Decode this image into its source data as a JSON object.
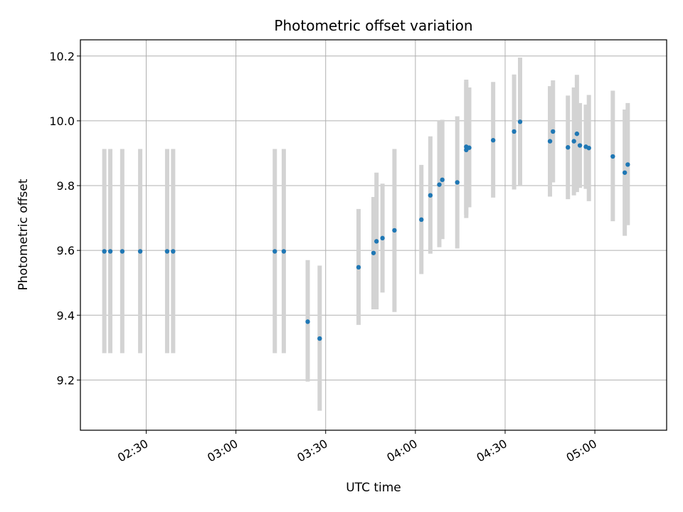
{
  "chart_data": {
    "type": "scatter",
    "title": "Photometric offset variation",
    "xlabel": "UTC time",
    "ylabel": "Photometric offset",
    "x_axis": "time",
    "xlim": [
      "02:08",
      "05:24"
    ],
    "ylim": [
      9.045,
      10.25
    ],
    "x_ticks": [
      "02:30",
      "03:00",
      "03:30",
      "04:00",
      "04:30",
      "05:00"
    ],
    "y_ticks": [
      9.2,
      9.4,
      9.6,
      9.8,
      10.0,
      10.2
    ],
    "grid": true,
    "colors": {
      "point": "#1f77b4",
      "errorbar": "#d3d3d3",
      "grid": "#b0b0b0"
    },
    "series": [
      {
        "points": [
          {
            "t": "02:16",
            "y": 9.597,
            "lo": 9.283,
            "hi": 9.913
          },
          {
            "t": "02:18",
            "y": 9.597,
            "lo": 9.283,
            "hi": 9.913
          },
          {
            "t": "02:22",
            "y": 9.597,
            "lo": 9.283,
            "hi": 9.913
          },
          {
            "t": "02:28",
            "y": 9.597,
            "lo": 9.283,
            "hi": 9.913
          },
          {
            "t": "02:37",
            "y": 9.597,
            "lo": 9.283,
            "hi": 9.913
          },
          {
            "t": "02:39",
            "y": 9.597,
            "lo": 9.283,
            "hi": 9.913
          },
          {
            "t": "03:13",
            "y": 9.597,
            "lo": 9.283,
            "hi": 9.913
          },
          {
            "t": "03:16",
            "y": 9.597,
            "lo": 9.283,
            "hi": 9.913
          },
          {
            "t": "03:24",
            "y": 9.38,
            "lo": 9.195,
            "hi": 9.57
          },
          {
            "t": "03:28",
            "y": 9.328,
            "lo": 9.105,
            "hi": 9.553
          },
          {
            "t": "03:41",
            "y": 9.548,
            "lo": 9.37,
            "hi": 9.728
          },
          {
            "t": "03:46",
            "y": 9.592,
            "lo": 9.418,
            "hi": 9.765
          },
          {
            "t": "03:47",
            "y": 9.628,
            "lo": 9.418,
            "hi": 9.84
          },
          {
            "t": "03:49",
            "y": 9.638,
            "lo": 9.47,
            "hi": 9.806
          },
          {
            "t": "03:53",
            "y": 9.662,
            "lo": 9.41,
            "hi": 9.913
          },
          {
            "t": "04:02",
            "y": 9.695,
            "lo": 9.527,
            "hi": 9.864
          },
          {
            "t": "04:05",
            "y": 9.77,
            "lo": 9.59,
            "hi": 9.952
          },
          {
            "t": "04:08",
            "y": 9.803,
            "lo": 9.61,
            "hi": 10.0
          },
          {
            "t": "04:09",
            "y": 9.818,
            "lo": 9.635,
            "hi": 10.003
          },
          {
            "t": "04:14",
            "y": 9.81,
            "lo": 9.606,
            "hi": 10.014
          },
          {
            "t": "04:17",
            "y": 9.91,
            "lo": 9.7,
            "hi": 10.12
          },
          {
            "t": "04:17",
            "y": 9.92,
            "lo": 9.71,
            "hi": 10.127
          },
          {
            "t": "04:18",
            "y": 9.917,
            "lo": 9.733,
            "hi": 10.103
          },
          {
            "t": "04:26",
            "y": 9.94,
            "lo": 9.763,
            "hi": 10.12
          },
          {
            "t": "04:33",
            "y": 9.967,
            "lo": 9.788,
            "hi": 10.143
          },
          {
            "t": "04:35",
            "y": 9.997,
            "lo": 9.8,
            "hi": 10.195
          },
          {
            "t": "04:45",
            "y": 9.937,
            "lo": 9.766,
            "hi": 10.107
          },
          {
            "t": "04:46",
            "y": 9.967,
            "lo": 9.81,
            "hi": 10.125
          },
          {
            "t": "04:51",
            "y": 9.918,
            "lo": 9.758,
            "hi": 10.078
          },
          {
            "t": "04:53",
            "y": 9.937,
            "lo": 9.77,
            "hi": 10.103
          },
          {
            "t": "04:54",
            "y": 9.96,
            "lo": 9.78,
            "hi": 10.142
          },
          {
            "t": "04:55",
            "y": 9.924,
            "lo": 9.793,
            "hi": 10.055
          },
          {
            "t": "04:57",
            "y": 9.92,
            "lo": 9.79,
            "hi": 10.05
          },
          {
            "t": "04:58",
            "y": 9.916,
            "lo": 9.752,
            "hi": 10.08
          },
          {
            "t": "05:06",
            "y": 9.89,
            "lo": 9.69,
            "hi": 10.093
          },
          {
            "t": "05:10",
            "y": 9.84,
            "lo": 9.645,
            "hi": 10.035
          },
          {
            "t": "05:11",
            "y": 9.865,
            "lo": 9.678,
            "hi": 10.055
          }
        ]
      }
    ]
  }
}
